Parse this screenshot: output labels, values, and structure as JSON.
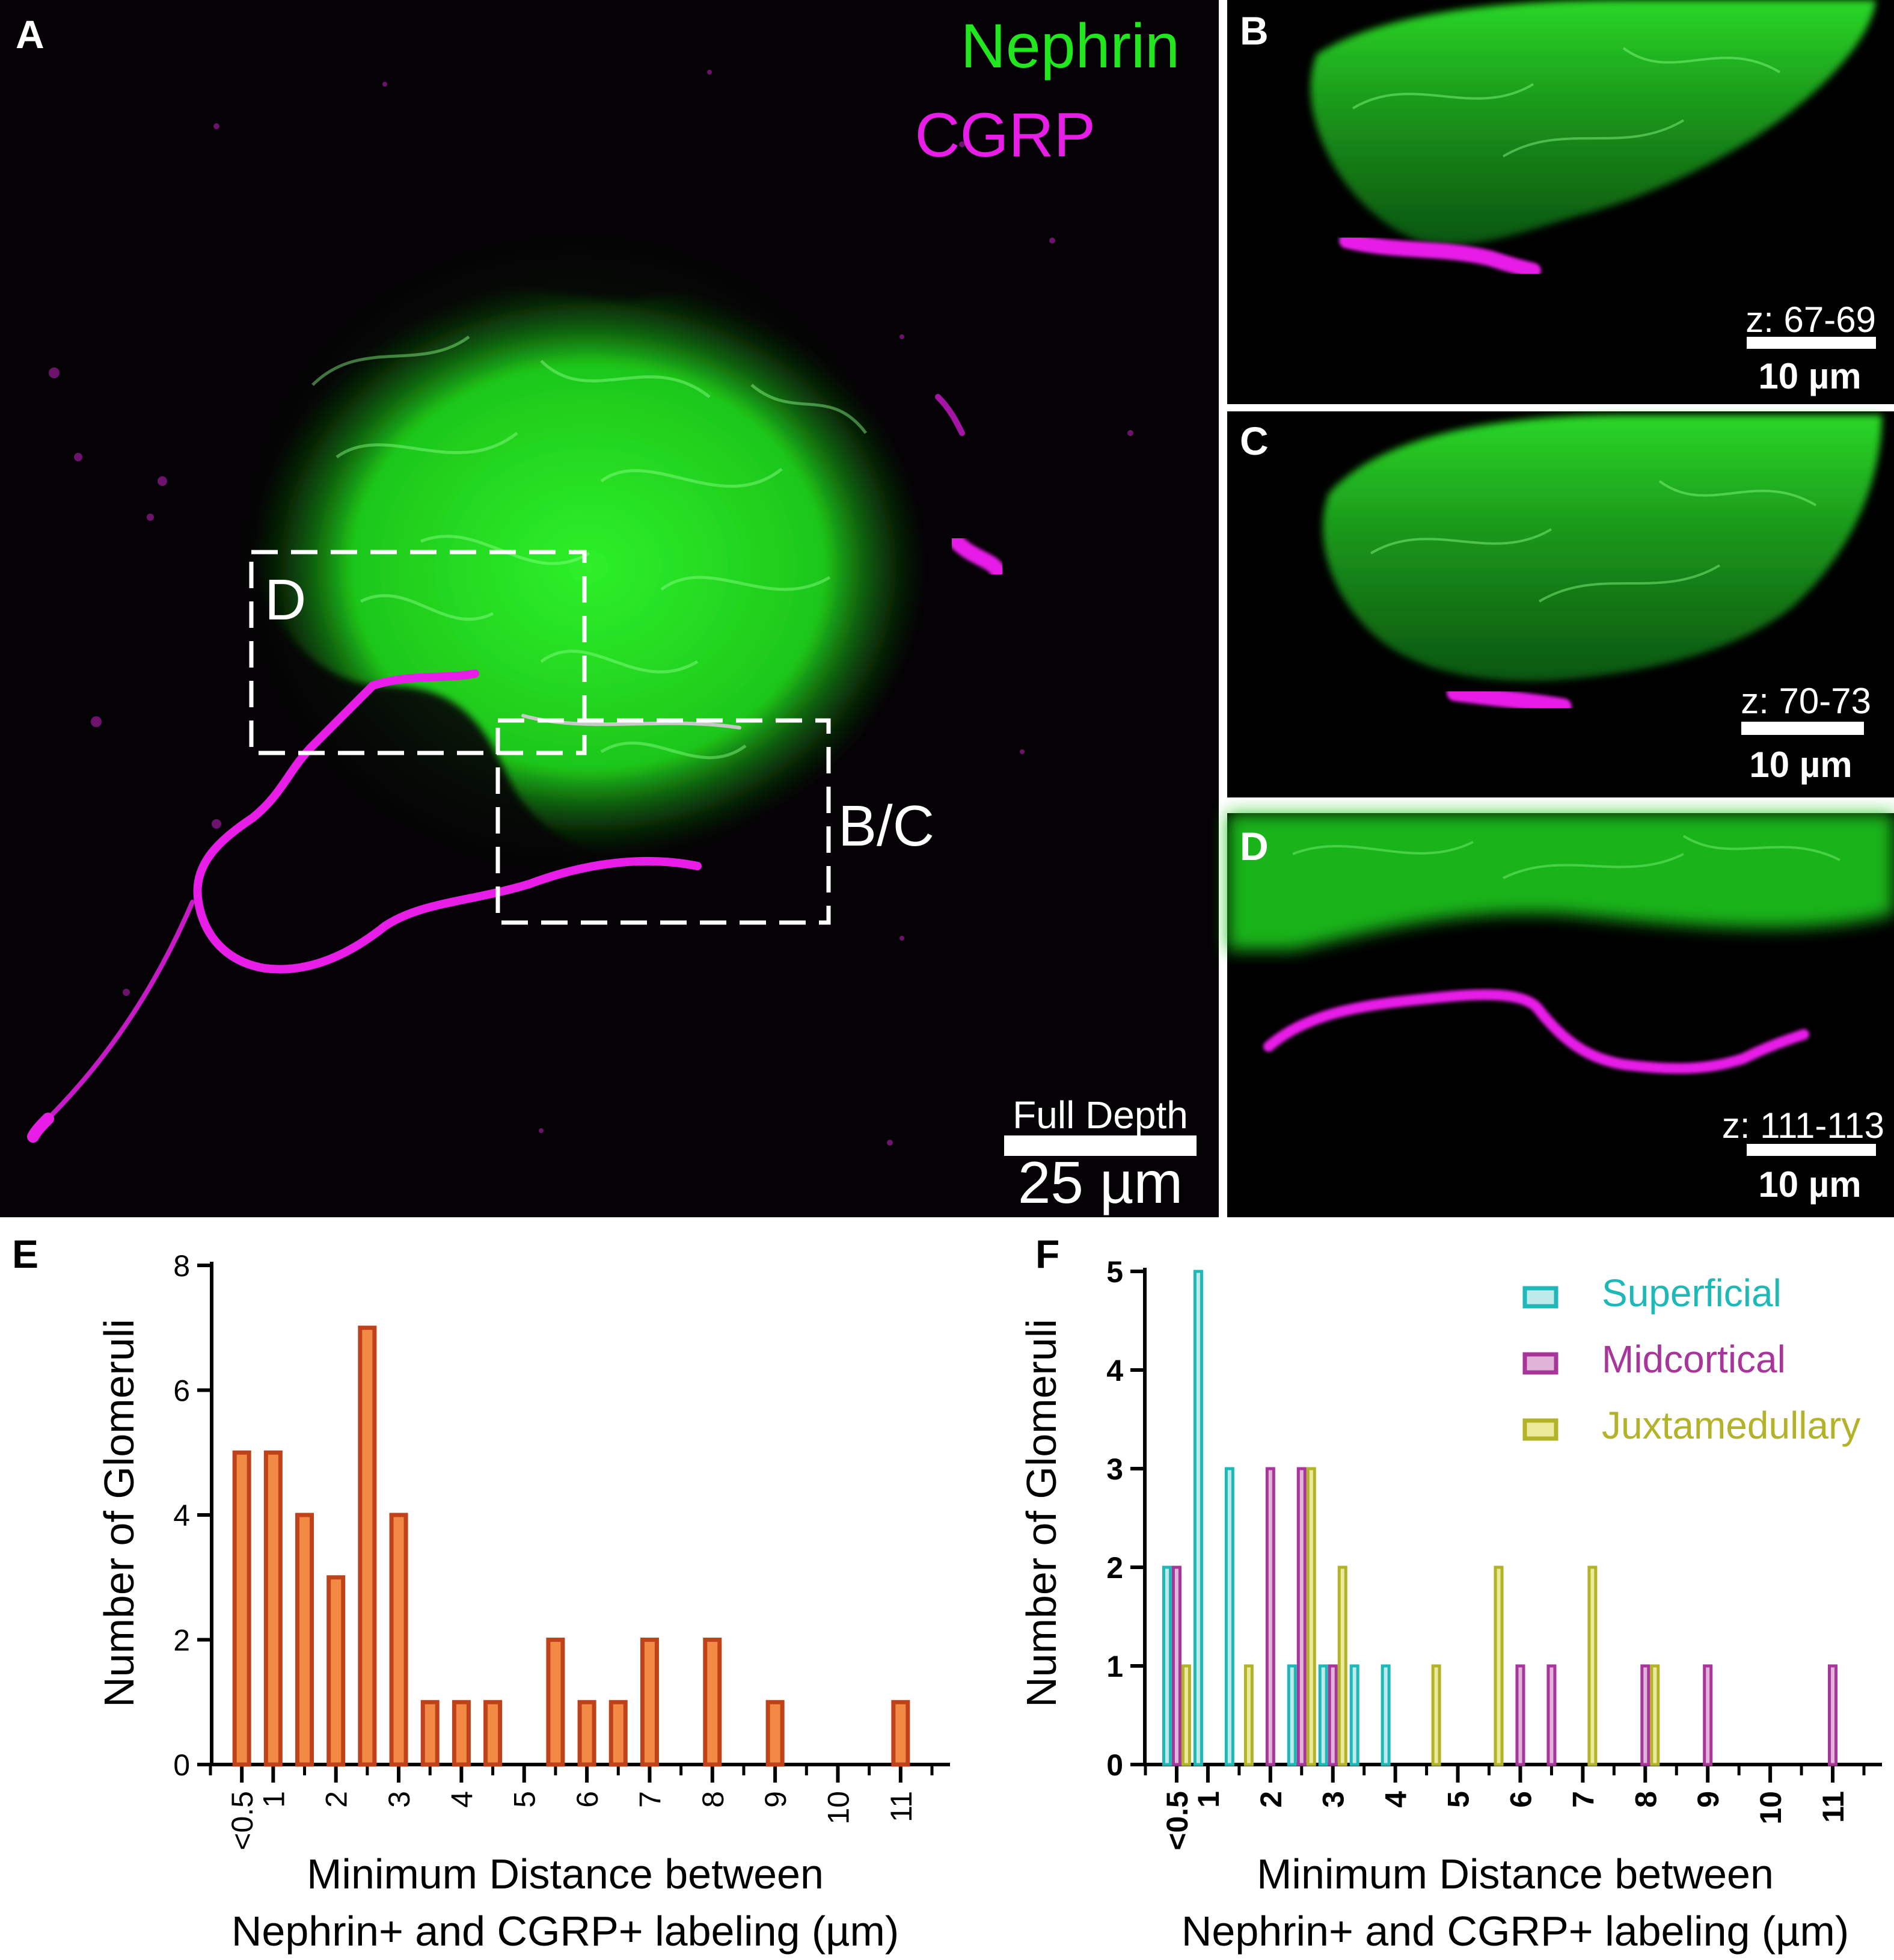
{
  "panel_a": {
    "letter": "A",
    "legend_nephrin": "Nephrin",
    "legend_cgrp": "CGRP",
    "box_d_label": "D",
    "box_bc_label": "B/C",
    "depth_label": "Full Depth",
    "scale_label": "25 µm",
    "colors": {
      "nephrin": "#22e61e",
      "cgrp": "#e81ee8"
    }
  },
  "panel_b": {
    "letter": "B",
    "z_label": "z: 67-69",
    "scale_label": "10 µm"
  },
  "panel_c": {
    "letter": "C",
    "z_label": "z: 70-73",
    "scale_label": "10 µm"
  },
  "panel_d": {
    "letter": "D",
    "z_label": "z: 111-113",
    "scale_label": "10 µm"
  },
  "chart_e": {
    "letter": "E"
  },
  "chart_f": {
    "letter": "F"
  },
  "chart_data": [
    {
      "type": "bar",
      "panel": "E",
      "title": "",
      "xlabel_line1": "Minimum Distance between",
      "xlabel_line2": "Nephrin+ and CGRP+ labeling (µm)",
      "ylabel": "Number of Glomeruli",
      "ylim": [
        0,
        8
      ],
      "yticks": [
        "0",
        "2",
        "4",
        "6",
        "8"
      ],
      "xticks": [
        "<0.5",
        "1",
        "2",
        "3",
        "4",
        "5",
        "6",
        "7",
        "8",
        "9",
        "10",
        "11"
      ],
      "bar_color": "#f28a45",
      "bar_edge": "#c0421a",
      "series": [
        {
          "x": [
            0.5,
            1,
            1.5,
            2,
            2.5,
            3,
            3.5,
            4,
            4.5,
            5.5,
            6,
            6.5,
            7,
            8,
            9,
            11
          ],
          "values": [
            5,
            5,
            4,
            3,
            7,
            4,
            1,
            1,
            1,
            2,
            1,
            1,
            2,
            2,
            1,
            1
          ]
        }
      ]
    },
    {
      "type": "bar",
      "panel": "F",
      "title": "",
      "xlabel_line1": "Minimum Distance between",
      "xlabel_line2": "Nephrin+ and CGRP+ labeling (µm)",
      "ylabel": "Number of Glomeruli",
      "ylim": [
        0,
        5
      ],
      "yticks": [
        "0",
        "1",
        "2",
        "3",
        "4",
        "5"
      ],
      "xticks": [
        "<0.5",
        "1",
        "2",
        "3",
        "4",
        "5",
        "6",
        "7",
        "8",
        "9",
        "10",
        "11"
      ],
      "legend_position": "top-right",
      "series": [
        {
          "name": "Superficial",
          "color": "#1fb8b8",
          "fill": "#bfeaea",
          "x": [
            0.5,
            1,
            1.5,
            2.5,
            3,
            3.5,
            4
          ],
          "values": [
            2,
            5,
            3,
            1,
            1,
            1,
            1
          ]
        },
        {
          "name": "Midcortical",
          "color": "#a8359a",
          "fill": "#e0b3d8",
          "x": [
            0.5,
            2,
            2.5,
            3,
            6,
            6.5,
            8,
            9,
            11
          ],
          "values": [
            2,
            3,
            3,
            1,
            1,
            1,
            1,
            1,
            1
          ]
        },
        {
          "name": "Juxtamedullary",
          "color": "#b3b32a",
          "fill": "#eaea9a",
          "x": [
            0.5,
            1.5,
            2.5,
            3,
            4.5,
            5.5,
            7,
            8
          ],
          "values": [
            1,
            1,
            3,
            2,
            1,
            2,
            2,
            1
          ]
        }
      ]
    }
  ]
}
